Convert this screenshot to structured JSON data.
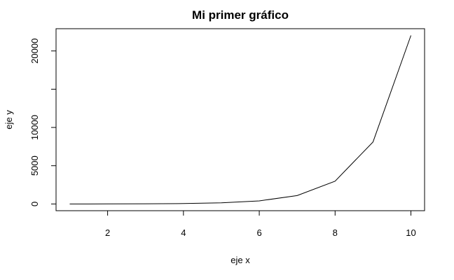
{
  "chart_data": {
    "type": "line",
    "title": "Mi primer gráfico",
    "xlabel": "eje x",
    "ylabel": "eje y",
    "x": [
      1,
      2,
      3,
      4,
      5,
      6,
      7,
      8,
      9,
      10
    ],
    "series": [
      {
        "values": [
          3,
          7,
          20,
          55,
          148,
          403,
          1097,
          2981,
          8103,
          22026
        ]
      }
    ],
    "xticks": [
      2,
      4,
      6,
      8,
      10
    ],
    "xtick_labels": [
      "2",
      "4",
      "6",
      "8",
      "10"
    ],
    "yticks": [
      0,
      5000,
      10000,
      15000,
      20000
    ],
    "ytick_labels": [
      "0",
      "5000",
      "10000",
      "",
      "20000"
    ],
    "xlim": [
      0.64,
      10.36
    ],
    "ylim": [
      -881,
      22907
    ],
    "grid": false,
    "colors": {
      "line": "#000000",
      "frame": "#000000"
    }
  }
}
